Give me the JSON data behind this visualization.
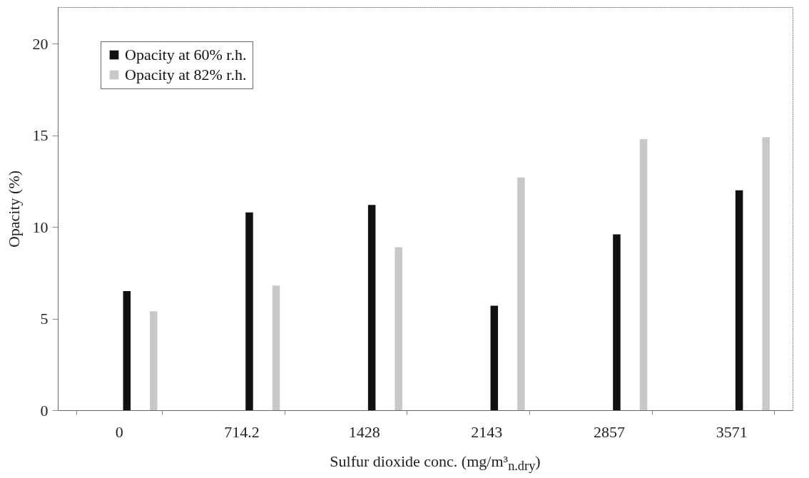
{
  "chart_data": {
    "type": "bar",
    "xlabel": "Sulfur dioxide conc. (mg/m³$_{n.dry}$)",
    "ylabel": "Opacity (%)",
    "categories": [
      "0",
      "714.2",
      "1428",
      "2143",
      "2857",
      "3571"
    ],
    "series": [
      {
        "name": "Opacity at 60% r.h.",
        "color": "#111111",
        "values": [
          6.5,
          10.8,
          11.2,
          5.7,
          9.6,
          12.0
        ]
      },
      {
        "name": "Opacity at 82% r.h.",
        "color": "#c8c8c8",
        "values": [
          5.4,
          6.8,
          8.9,
          12.7,
          14.8,
          14.9
        ]
      }
    ],
    "ylim": [
      0,
      22
    ],
    "yticks": [
      0,
      5,
      10,
      15,
      20
    ],
    "grid": false,
    "legend": "top left"
  }
}
